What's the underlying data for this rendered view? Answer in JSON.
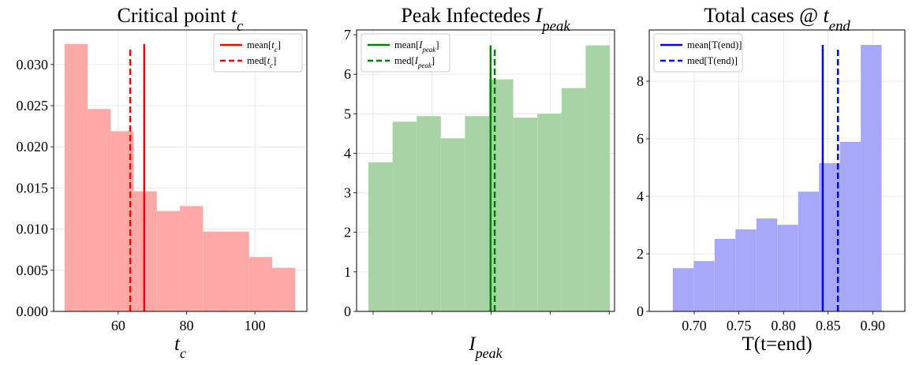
{
  "chart_data": [
    {
      "type": "histogram",
      "title": [
        "Critical point ",
        {
          "i": "t"
        },
        {
          "sub": "c"
        }
      ],
      "xlabel": [
        {
          "i": "t"
        },
        {
          "sub": "c"
        }
      ],
      "bins": [
        44.3,
        51.05,
        57.8,
        64.55,
        71.3,
        78.05,
        84.8,
        91.55,
        98.3,
        105.05,
        111.8
      ],
      "values": [
        0.0325,
        0.0246,
        0.0219,
        0.0146,
        0.0122,
        0.0128,
        0.0097,
        0.0097,
        0.0066,
        0.0053
      ],
      "color": "#ffa8a8",
      "lines": [
        {
          "name": [
            "mean[",
            {
              "i": "t"
            },
            {
              "sub": "c"
            },
            "]"
          ],
          "color": "#ff0000",
          "linestyle": "solid",
          "x": 67.6,
          "top": 0.0325
        },
        {
          "name": [
            "med[",
            {
              "i": "t"
            },
            {
              "sub": "c"
            },
            "]"
          ],
          "color": "#ff0000",
          "linestyle": "dashed",
          "x": 63.5,
          "top": 0.0321
        }
      ],
      "legend": "upper right",
      "xlim": [
        41.1,
        115.2
      ],
      "ylim": [
        0,
        0.0342
      ],
      "xticks": [
        60,
        80,
        100
      ],
      "yticks": [
        {
          "value": 0,
          "label": "0.000"
        },
        {
          "value": 0.005,
          "label": "0.005"
        },
        {
          "value": 0.01,
          "label": "0.010"
        },
        {
          "value": 0.015,
          "label": "0.015"
        },
        {
          "value": 0.02,
          "label": "0.020"
        },
        {
          "value": 0.025,
          "label": "0.025"
        },
        {
          "value": 0.03,
          "label": "0.030"
        }
      ],
      "grid": true
    },
    {
      "type": "histogram",
      "title": [
        "Peak Infectedes ",
        {
          "i": "I"
        },
        {
          "sub": "peak"
        }
      ],
      "xlabel": [
        {
          "i": "I"
        },
        {
          "sub": "peak"
        }
      ],
      "bins": [
        -0.08,
        0.329,
        0.738,
        1.147,
        1.556,
        1.965,
        2.374,
        2.783,
        3.192,
        3.601,
        4.01
      ],
      "values": [
        3.77,
        4.8,
        4.94,
        4.38,
        4.94,
        5.87,
        4.9,
        5.0,
        5.65,
        6.73
      ],
      "color": "#a8d3a5",
      "lines": [
        {
          "name": [
            "mean[",
            {
              "i": "I"
            },
            {
              "sub": "peak"
            },
            "]"
          ],
          "color": "#008000",
          "linestyle": "solid",
          "x": 1.99,
          "top": 6.73
        },
        {
          "name": [
            "med[",
            {
              "i": "I"
            },
            {
              "sub": "peak"
            },
            "]"
          ],
          "color": "#008000",
          "linestyle": "dashed",
          "x": 2.06,
          "top": 6.65
        }
      ],
      "legend": "upper left",
      "xlim": [
        -0.28,
        4.09
      ],
      "ylim": [
        0,
        7.12
      ],
      "xticks": [
        0,
        1,
        2,
        3,
        4
      ],
      "yticks": [
        0,
        1,
        2,
        3,
        4,
        5,
        6,
        7
      ],
      "grid": true
    },
    {
      "type": "histogram",
      "title": [
        "Total cases @ ",
        {
          "i": "t"
        },
        {
          "sub": "end"
        }
      ],
      "xlabel": "T(t=end)",
      "bins": [
        0.676,
        0.6994,
        0.7228,
        0.7462,
        0.7696,
        0.793,
        0.8164,
        0.8398,
        0.8632,
        0.8866,
        0.91
      ],
      "values": [
        1.5,
        1.75,
        2.52,
        2.85,
        3.23,
        3.01,
        4.16,
        5.15,
        5.89,
        9.26
      ],
      "color": "#a8a8fa",
      "lines": [
        {
          "name": "mean[T(end)]",
          "color": "#0000ff",
          "linestyle": "solid",
          "x": 0.844,
          "top": 9.26
        },
        {
          "name": "med[T(end)]",
          "color": "#0000ff",
          "linestyle": "dashed",
          "x": 0.861,
          "top": 9.18
        }
      ],
      "legend": "upper left",
      "xlim": [
        0.6496,
        0.936
      ],
      "ylim": [
        0,
        9.78
      ],
      "xticks": [
        {
          "value": 0.7,
          "label": "0.70"
        },
        {
          "value": 0.75,
          "label": "0.75"
        },
        {
          "value": 0.8,
          "label": "0.80"
        },
        {
          "value": 0.85,
          "label": "0.85"
        },
        {
          "value": 0.9,
          "label": "0.90"
        }
      ],
      "yticks": [
        0,
        2,
        4,
        6,
        8
      ],
      "grid": true
    }
  ]
}
